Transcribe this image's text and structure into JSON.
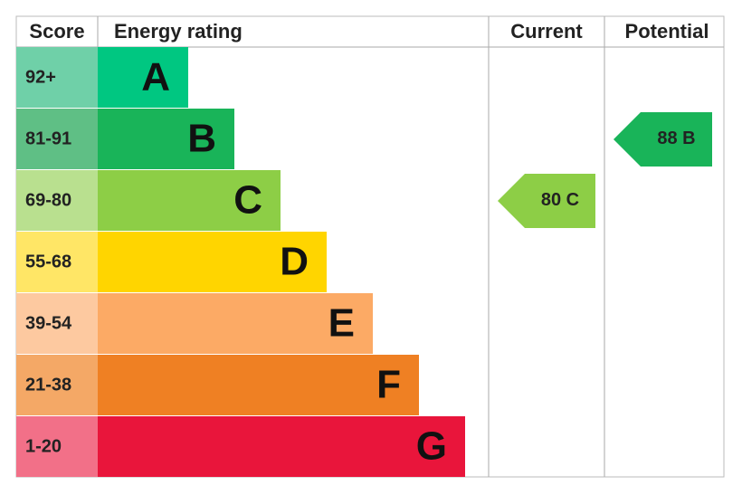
{
  "header": {
    "score": "Score",
    "rating": "Energy rating",
    "current": "Current",
    "potential": "Potential"
  },
  "bands": [
    {
      "score": "92+",
      "letter": "A",
      "color": "#00c781",
      "light": "#6fd0a8"
    },
    {
      "score": "81-91",
      "letter": "B",
      "color": "#19b459",
      "light": "#5fbf85"
    },
    {
      "score": "69-80",
      "letter": "C",
      "color": "#8dce46",
      "light": "#b9e08f"
    },
    {
      "score": "55-68",
      "letter": "D",
      "color": "#ffd500",
      "light": "#ffe666"
    },
    {
      "score": "39-54",
      "letter": "E",
      "color": "#fcaa65",
      "light": "#fdc9a0"
    },
    {
      "score": "21-38",
      "letter": "F",
      "color": "#ef8023",
      "light": "#f4a866"
    },
    {
      "score": "1-20",
      "letter": "G",
      "color": "#e9153b",
      "light": "#f27088"
    }
  ],
  "current": {
    "score": 80,
    "rating": "C"
  },
  "potential": {
    "score": 88,
    "rating": "B"
  }
}
